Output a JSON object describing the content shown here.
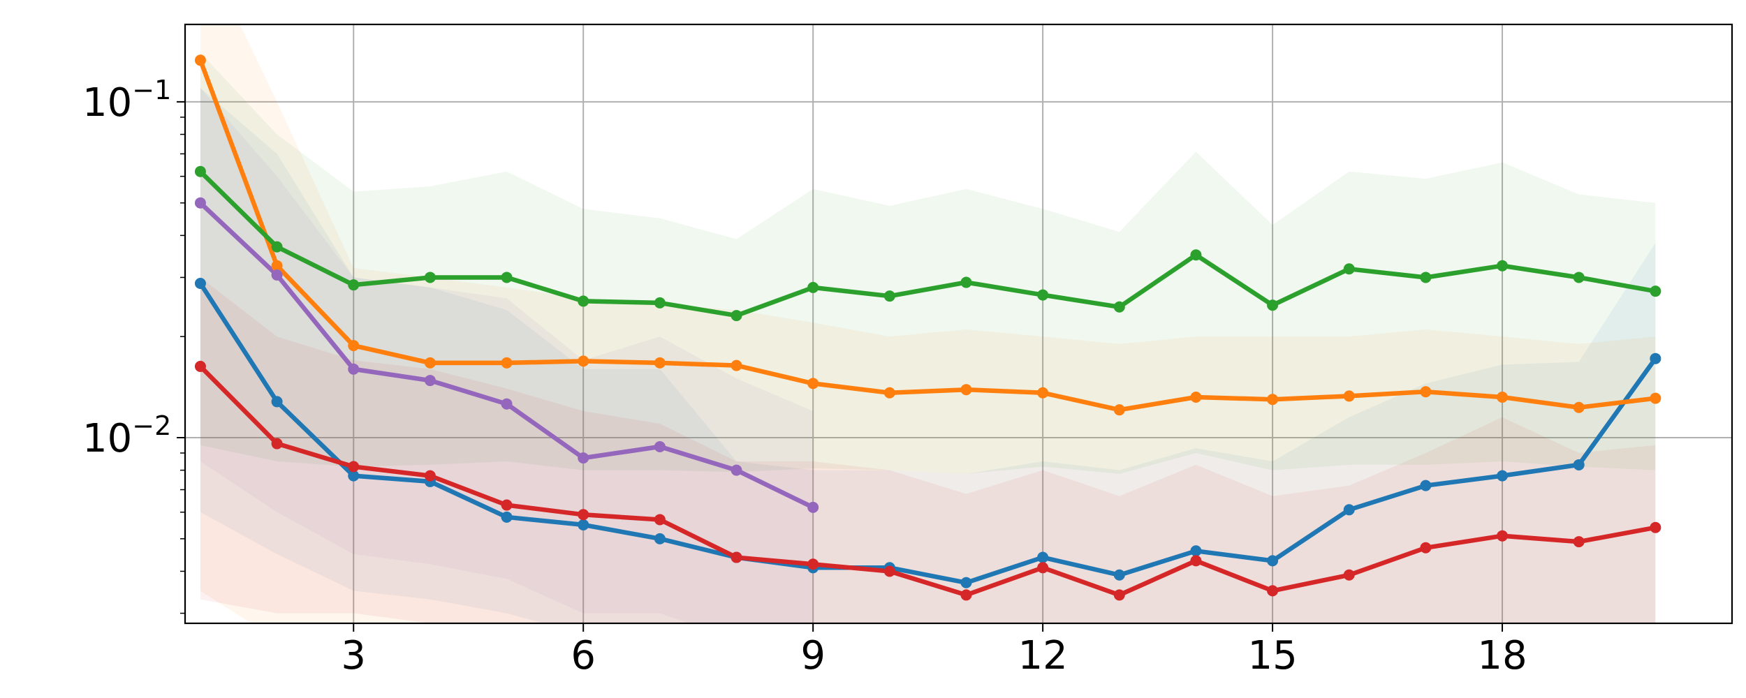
{
  "chart_data": {
    "type": "line",
    "title": "",
    "xlabel": "",
    "ylabel": "",
    "yscale": "log",
    "xlim": [
      0.8,
      21.0
    ],
    "ylim": [
      0.0028,
      0.17
    ],
    "grid": true,
    "x_ticks": [
      3,
      6,
      9,
      12,
      15,
      18
    ],
    "x_tick_labels": [
      "3",
      "6",
      "9",
      "12",
      "15",
      "18"
    ],
    "y_ticks": [
      {
        "value": 0.1,
        "base": "10",
        "exponent": "−1"
      },
      {
        "value": 0.01,
        "base": "10",
        "exponent": "−2"
      }
    ],
    "series": [
      {
        "color": "#1f77b4",
        "x": [
          1,
          2,
          3,
          4,
          5,
          6,
          7,
          8,
          9,
          10,
          11,
          12,
          13,
          14,
          15,
          16,
          17,
          18,
          19,
          20
        ],
        "y": [
          0.0288,
          0.0128,
          0.0077,
          0.0074,
          0.0058,
          0.0055,
          0.005,
          0.0044,
          0.0041,
          0.0041,
          0.0037,
          0.0044,
          0.0039,
          0.0046,
          0.0043,
          0.0061,
          0.0072,
          0.0077,
          0.0083,
          0.0172
        ],
        "band_upper": [
          0.11,
          0.07,
          0.03,
          0.028,
          0.024,
          0.016,
          0.016,
          0.0085,
          0.008,
          0.008,
          0.0078,
          0.0085,
          0.008,
          0.0093,
          0.0085,
          0.0115,
          0.0145,
          0.0165,
          0.0168,
          0.038
        ],
        "band_lower": [
          0.006,
          0.0045,
          0.0035,
          0.0033,
          0.003,
          0.0026,
          0.0025,
          0.0025,
          0.0025,
          0.0025,
          0.0025,
          0.0025,
          0.0025,
          0.0025,
          0.0025,
          0.0025,
          0.0025,
          0.0025,
          0.0025,
          0.0025
        ]
      },
      {
        "color": "#ff7f0e",
        "x": [
          1,
          2,
          3,
          4,
          5,
          6,
          7,
          8,
          9,
          10,
          11,
          12,
          13,
          14,
          15,
          16,
          17,
          18,
          19,
          20
        ],
        "y": [
          0.133,
          0.0325,
          0.0188,
          0.0167,
          0.0167,
          0.0169,
          0.0167,
          0.0164,
          0.0145,
          0.0136,
          0.0139,
          0.0136,
          0.0121,
          0.0132,
          0.013,
          0.0133,
          0.0137,
          0.0132,
          0.0123,
          0.0131
        ],
        "band_upper": [
          0.3,
          0.1,
          0.032,
          0.03,
          0.028,
          0.026,
          0.025,
          0.024,
          0.022,
          0.02,
          0.021,
          0.02,
          0.019,
          0.02,
          0.02,
          0.02,
          0.021,
          0.02,
          0.019,
          0.02
        ],
        "band_lower": [
          0.0035,
          0.0025,
          0.0025,
          0.0025,
          0.0025,
          0.0025,
          0.0025,
          0.0025,
          0.0025,
          0.0025,
          0.0025,
          0.0025,
          0.0025,
          0.0025,
          0.0025,
          0.0025,
          0.0025,
          0.0025,
          0.0025,
          0.0025
        ]
      },
      {
        "color": "#2ca02c",
        "x": [
          1,
          2,
          3,
          4,
          5,
          6,
          7,
          8,
          9,
          10,
          11,
          12,
          13,
          14,
          15,
          16,
          17,
          18,
          19,
          20
        ],
        "y": [
          0.062,
          0.037,
          0.0285,
          0.03,
          0.03,
          0.0255,
          0.0252,
          0.0231,
          0.028,
          0.0264,
          0.029,
          0.0266,
          0.0245,
          0.035,
          0.0248,
          0.0318,
          0.03,
          0.0325,
          0.03,
          0.0273
        ],
        "band_upper": [
          0.14,
          0.08,
          0.054,
          0.056,
          0.062,
          0.048,
          0.045,
          0.039,
          0.055,
          0.049,
          0.055,
          0.048,
          0.041,
          0.071,
          0.043,
          0.062,
          0.059,
          0.066,
          0.053,
          0.05
        ],
        "band_lower": [
          0.0095,
          0.0085,
          0.0082,
          0.0083,
          0.0085,
          0.008,
          0.008,
          0.0079,
          0.0081,
          0.008,
          0.0078,
          0.0082,
          0.0078,
          0.009,
          0.008,
          0.0083,
          0.0083,
          0.0085,
          0.0082,
          0.008
        ]
      },
      {
        "color": "#d62728",
        "x": [
          1,
          2,
          3,
          4,
          5,
          6,
          7,
          8,
          9,
          10,
          11,
          12,
          13,
          14,
          15,
          16,
          17,
          18,
          19,
          20
        ],
        "y": [
          0.0163,
          0.0096,
          0.0082,
          0.0077,
          0.0063,
          0.0059,
          0.0057,
          0.0044,
          0.0042,
          0.004,
          0.0034,
          0.0041,
          0.0034,
          0.0043,
          0.0035,
          0.0039,
          0.0047,
          0.0051,
          0.0049,
          0.0054
        ],
        "band_upper": [
          0.03,
          0.02,
          0.017,
          0.016,
          0.014,
          0.012,
          0.011,
          0.0085,
          0.0085,
          0.008,
          0.0068,
          0.008,
          0.0067,
          0.0083,
          0.0067,
          0.0072,
          0.009,
          0.0115,
          0.009,
          0.0095
        ],
        "band_lower": [
          0.0033,
          0.003,
          0.003,
          0.0028,
          0.0026,
          0.0025,
          0.0025,
          0.0025,
          0.0025,
          0.0025,
          0.0025,
          0.0025,
          0.0025,
          0.0025,
          0.0025,
          0.0025,
          0.0025,
          0.0025,
          0.0025,
          0.0025
        ]
      },
      {
        "color": "#9467bd",
        "x": [
          1,
          2,
          3,
          4,
          5,
          6,
          7,
          8,
          9
        ],
        "y": [
          0.05,
          0.0305,
          0.016,
          0.0148,
          0.0126,
          0.0087,
          0.0094,
          0.008,
          0.0062
        ],
        "band_upper": [
          0.11,
          0.06,
          0.03,
          0.028,
          0.026,
          0.017,
          0.02,
          0.015,
          0.012
        ],
        "band_lower": [
          0.0085,
          0.006,
          0.0045,
          0.0042,
          0.0038,
          0.003,
          0.003,
          0.0025,
          0.0025
        ]
      }
    ]
  }
}
